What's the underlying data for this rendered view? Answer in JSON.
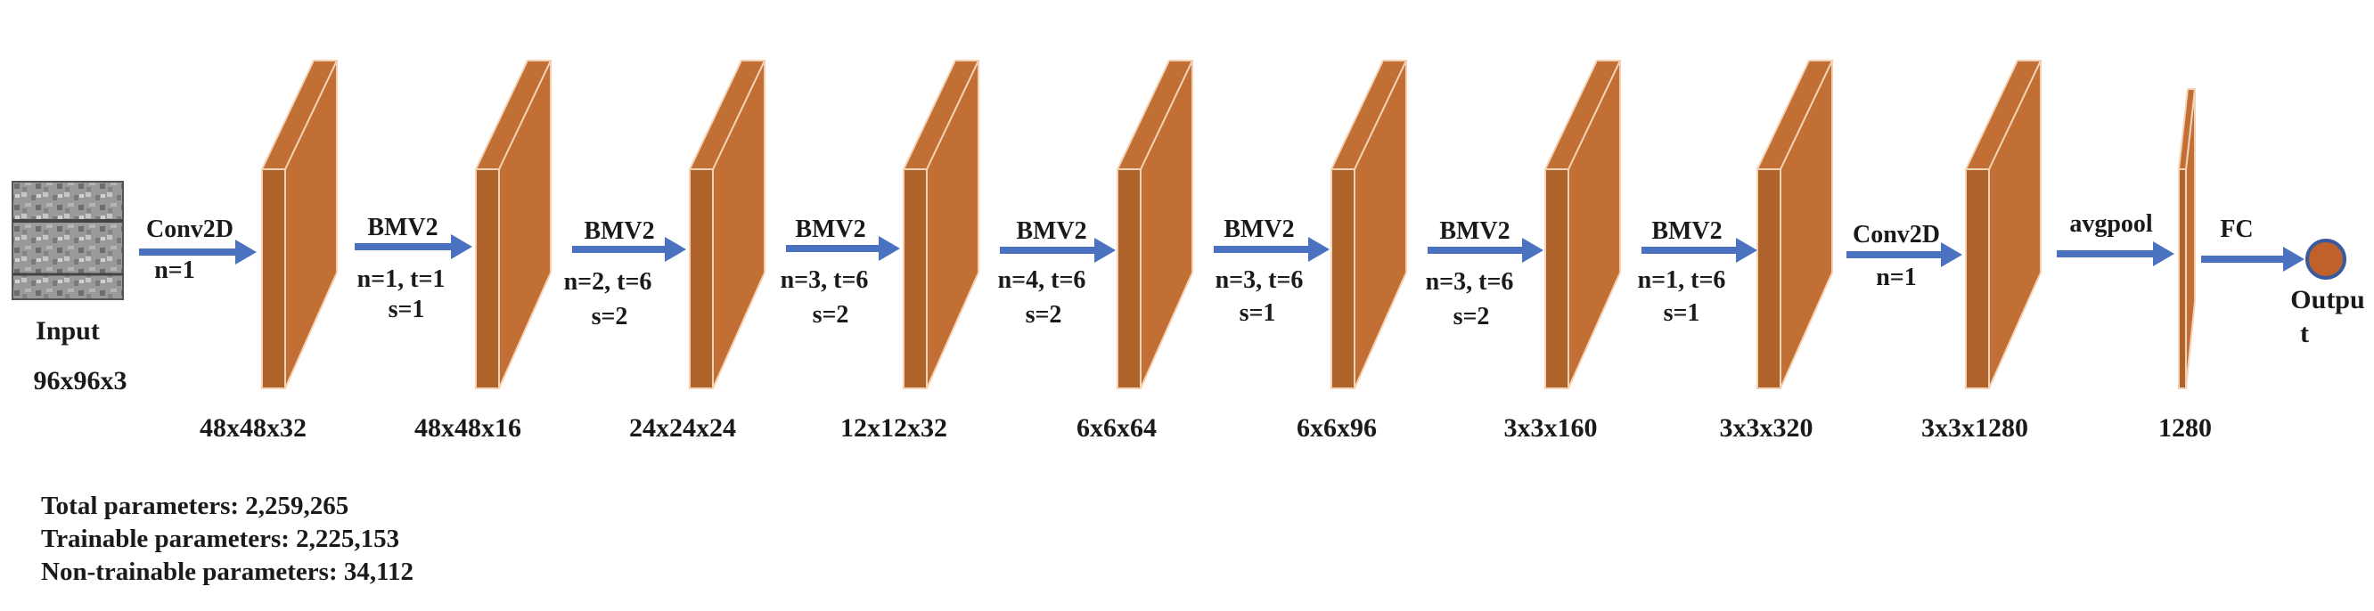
{
  "input": {
    "label": "Input",
    "size": "96x96x3"
  },
  "output": {
    "label_line1": "Outpu",
    "label_line2": "t"
  },
  "steps": [
    {
      "op": "Conv2D",
      "params_line1": "n=1",
      "params_line2": "",
      "shape": "48x48x32"
    },
    {
      "op": "BMV2",
      "params_line1": "n=1, t=1",
      "params_line2": "s=1",
      "shape": "48x48x16"
    },
    {
      "op": "BMV2",
      "params_line1": "n=2, t=6",
      "params_line2": "s=2",
      "shape": "24x24x24"
    },
    {
      "op": "BMV2",
      "params_line1": "n=3, t=6",
      "params_line2": "s=2",
      "shape": "12x12x32"
    },
    {
      "op": "BMV2",
      "params_line1": "n=4, t=6",
      "params_line2": "s=2",
      "shape": "6x6x64"
    },
    {
      "op": "BMV2",
      "params_line1": "n=3, t=6",
      "params_line2": "s=1",
      "shape": "6x6x96"
    },
    {
      "op": "BMV2",
      "params_line1": "n=3, t=6",
      "params_line2": "s=2",
      "shape": "3x3x160"
    },
    {
      "op": "BMV2",
      "params_line1": "n=1, t=6",
      "params_line2": "s=1",
      "shape": "3x3x320"
    },
    {
      "op": "Conv2D",
      "params_line1": "n=1",
      "params_line2": "",
      "shape": "3x3x1280"
    },
    {
      "op": "avgpool",
      "params_line1": "",
      "params_line2": "",
      "shape": "1280"
    },
    {
      "op": "FC",
      "params_line1": "",
      "params_line2": "",
      "shape": ""
    }
  ],
  "summary": {
    "total": "Total parameters: 2,259,265",
    "trainable": "Trainable parameters: 2,225,153",
    "non_trainable": "Non-trainable parameters: 34,112"
  },
  "colors": {
    "block_front": "#b0622b",
    "block_side": "#c16f34",
    "block_edge": "#f3d3b6",
    "arrow": "#4a72c0",
    "output_fill": "#c0602a",
    "output_stroke": "#3a5aa0"
  }
}
